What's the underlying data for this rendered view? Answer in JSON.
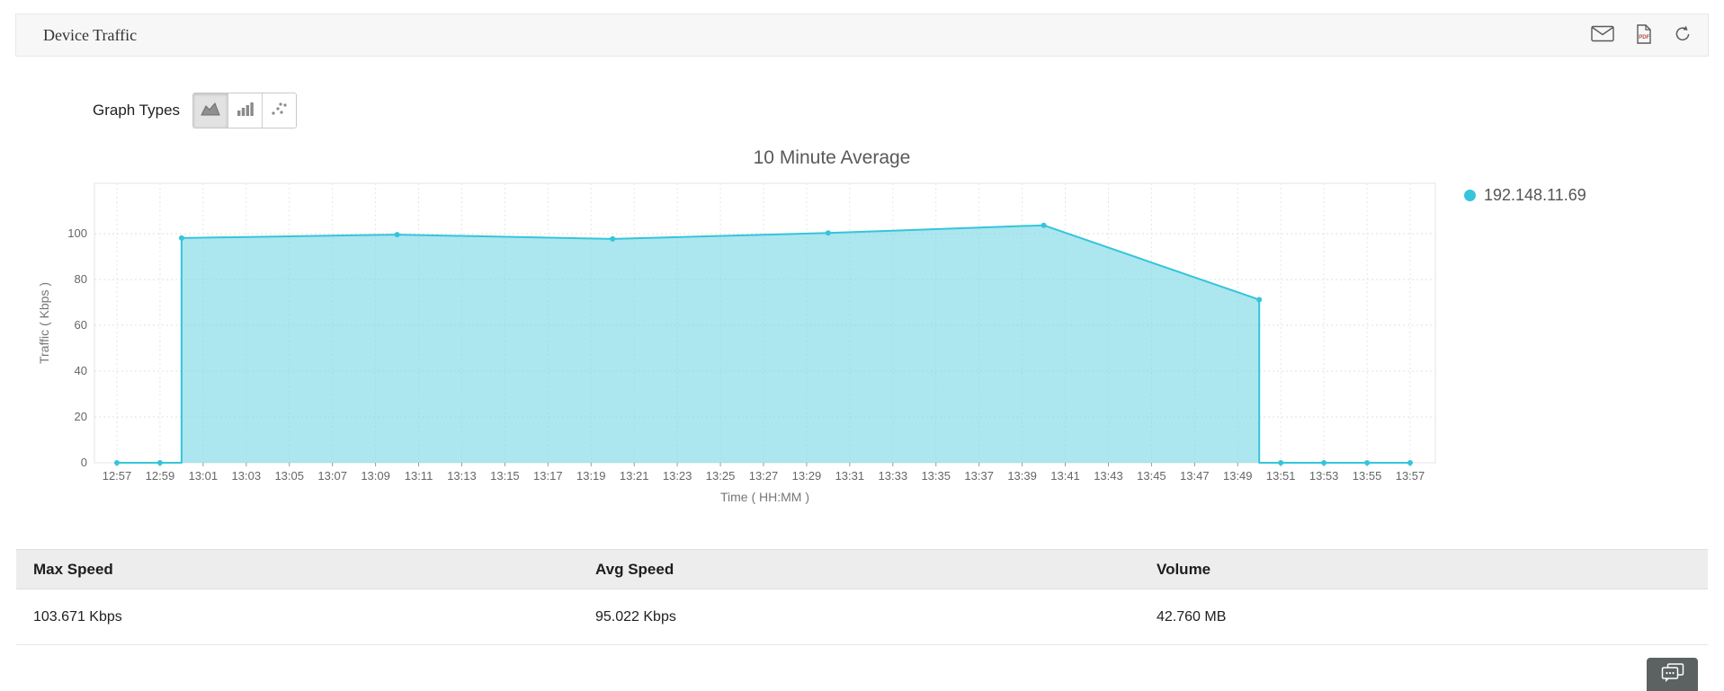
{
  "header": {
    "title": "Device Traffic",
    "actions": {
      "email": "email-report",
      "pdf": "export-pdf",
      "reset": "reset-view"
    }
  },
  "toolbar": {
    "graph_types_label": "Graph Types",
    "types": [
      "area",
      "bar",
      "scatter"
    ],
    "active_type": "area"
  },
  "chart_data": {
    "type": "area",
    "title": "10 Minute Average",
    "xlabel": "Time ( HH:MM )",
    "ylabel": "Traffic ( Kbps )",
    "x_ticks": [
      "12:57",
      "12:59",
      "13:01",
      "13:03",
      "13:05",
      "13:07",
      "13:09",
      "13:11",
      "13:13",
      "13:15",
      "13:17",
      "13:19",
      "13:21",
      "13:23",
      "13:25",
      "13:27",
      "13:29",
      "13:31",
      "13:33",
      "13:35",
      "13:37",
      "13:39",
      "13:41",
      "13:43",
      "13:45",
      "13:47",
      "13:49",
      "13:51",
      "13:53",
      "13:55",
      "13:57"
    ],
    "y_ticks": [
      0,
      20,
      40,
      60,
      80,
      100
    ],
    "ylim": [
      0,
      122
    ],
    "grid": true,
    "legend_position": "right",
    "series": [
      {
        "name": "192.148.11.69",
        "color": "#35c5da",
        "fill": "#7fd8e6",
        "fill_opacity": 0.65,
        "points": [
          [
            "12:57",
            0
          ],
          [
            "12:59",
            0
          ],
          [
            "13:00",
            0
          ],
          [
            "13:00",
            98.1
          ],
          [
            "13:10",
            99.6
          ],
          [
            "13:20",
            97.7
          ],
          [
            "13:30",
            100.3
          ],
          [
            "13:40",
            103.671
          ],
          [
            "13:50",
            71.2
          ],
          [
            "13:50",
            0
          ],
          [
            "13:51",
            0
          ],
          [
            "13:53",
            0
          ],
          [
            "13:55",
            0
          ],
          [
            "13:57",
            0
          ]
        ],
        "markers": [
          [
            "12:57",
            0
          ],
          [
            "12:59",
            0
          ],
          [
            "13:00",
            98.1
          ],
          [
            "13:10",
            99.6
          ],
          [
            "13:20",
            97.7
          ],
          [
            "13:30",
            100.3
          ],
          [
            "13:40",
            103.671
          ],
          [
            "13:50",
            71.2
          ],
          [
            "13:51",
            0
          ],
          [
            "13:53",
            0
          ],
          [
            "13:55",
            0
          ],
          [
            "13:57",
            0
          ]
        ]
      }
    ]
  },
  "table": {
    "headers": [
      "Max Speed",
      "Avg Speed",
      "Volume"
    ],
    "rows": [
      [
        "103.671 Kbps",
        "95.022 Kbps",
        "42.760 MB"
      ]
    ]
  }
}
